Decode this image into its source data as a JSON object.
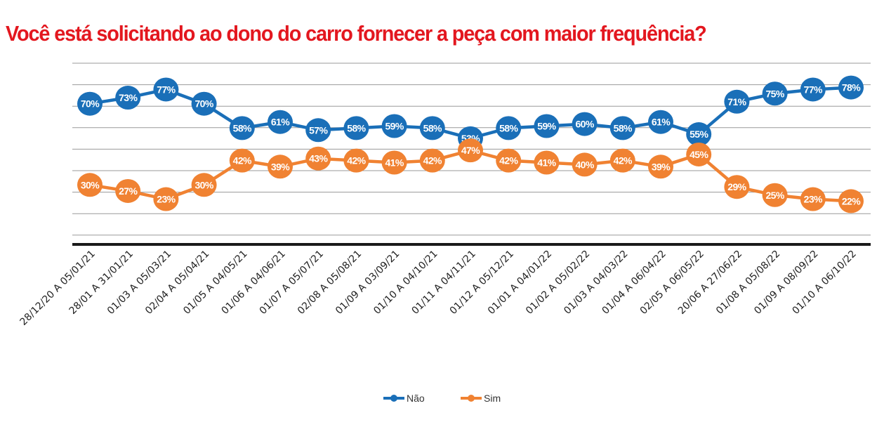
{
  "chart_data": {
    "type": "line",
    "title": "Você está solicitando ao dono do carro fornecer a peça com maior frequência?",
    "xlabel": "",
    "ylabel": "",
    "ylim": [
      0,
      100
    ],
    "grid": true,
    "legend_position": "bottom",
    "categories": [
      "28/12/20 A 05/01/21",
      "28/01 A 31/01/21",
      "01/03 A 05/03/21",
      "02/04 A 05/04/21",
      "01/05 A 04/05/21",
      "01/06 A 04/06/21",
      "01/07 A 05/07/21",
      "02/08 A 05/08/21",
      "01/09 A 03/09/21",
      "01/10 A 04/10/21",
      "01/11 A 04/11/21",
      "01/12 A 05/12/21",
      "01/01 A 04/01/22",
      "01/02 A 05/02/22",
      "01/03 A 04/03/22",
      "01/04 A 06/04/22",
      "02/05 A 06/05/22",
      "20/06 A 27/06/22",
      "01/08 A 05/08/22",
      "01/09 A 08/09/22",
      "01/10 A 06/10/22"
    ],
    "series": [
      {
        "name": "Não",
        "color": "#1a6fb8",
        "values": [
          70,
          73,
          77,
          70,
          58,
          61,
          57,
          58,
          59,
          58,
          53,
          58,
          59,
          60,
          58,
          61,
          55,
          71,
          75,
          77,
          78
        ]
      },
      {
        "name": "Sim",
        "color": "#f08232",
        "values": [
          30,
          27,
          23,
          30,
          42,
          39,
          43,
          42,
          41,
          42,
          47,
          42,
          41,
          40,
          42,
          39,
          45,
          29,
          25,
          23,
          22
        ]
      }
    ]
  }
}
